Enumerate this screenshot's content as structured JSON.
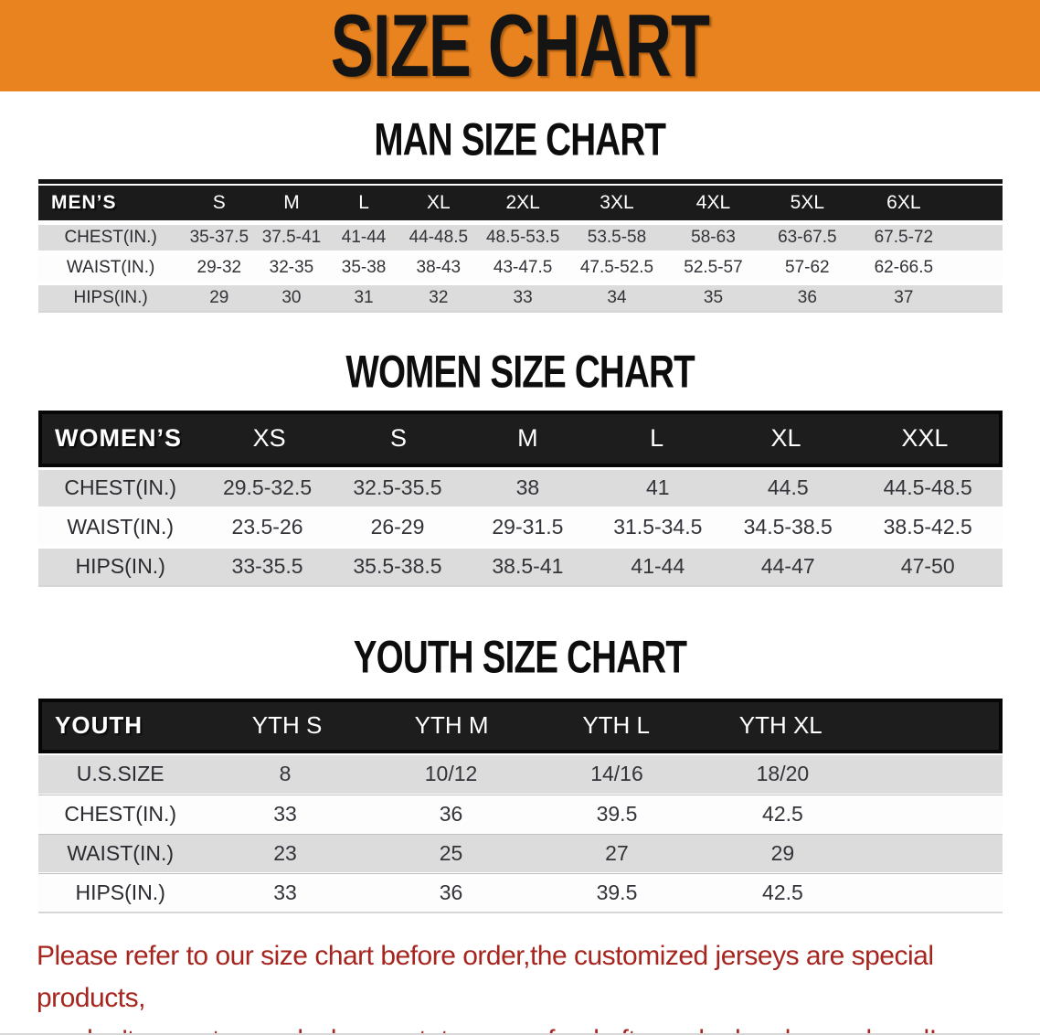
{
  "theme": {
    "banner_bg": "#E8831F",
    "banner_text": "#141414",
    "band_bg": "#1b1b1b",
    "band_text": "#ffffff",
    "stripe_gray": "#dcdcdc",
    "stripe_white": "#fdfdfd",
    "data_text": "#333339",
    "footer_red": "#a6251e"
  },
  "banner": {
    "title": "SIZE CHART"
  },
  "sections": {
    "men": {
      "title": "MAN SIZE CHART",
      "table": {
        "header_label": "MEN’S",
        "columns": [
          "S",
          "M",
          "L",
          "XL",
          "2XL",
          "3XL",
          "4XL",
          "5XL",
          "6XL"
        ],
        "rows": [
          {
            "label": "CHEST(IN.)",
            "values": [
              "35-37.5",
              "37.5-41",
              "41-44",
              "44-48.5",
              "48.5-53.5",
              "53.5-58",
              "58-63",
              "63-67.5",
              "67.5-72"
            ]
          },
          {
            "label": "WAIST(IN.)",
            "values": [
              "29-32",
              "32-35",
              "35-38",
              "38-43",
              "43-47.5",
              "47.5-52.5",
              "52.5-57",
              "57-62",
              "62-66.5"
            ]
          },
          {
            "label": "HIPS(IN.)",
            "values": [
              "29",
              "30",
              "31",
              "32",
              "33",
              "34",
              "35",
              "36",
              "37"
            ]
          }
        ]
      }
    },
    "women": {
      "title": "WOMEN SIZE CHART",
      "table": {
        "header_label": "WOMEN’S",
        "columns": [
          "XS",
          "S",
          "M",
          "L",
          "XL",
          "XXL"
        ],
        "rows": [
          {
            "label": "CHEST(IN.)",
            "values": [
              "29.5-32.5",
              "32.5-35.5",
              "38",
              "41",
              "44.5",
              "44.5-48.5"
            ]
          },
          {
            "label": "WAIST(IN.)",
            "values": [
              "23.5-26",
              "26-29",
              "29-31.5",
              "31.5-34.5",
              "34.5-38.5",
              "38.5-42.5"
            ]
          },
          {
            "label": "HIPS(IN.)",
            "values": [
              "33-35.5",
              "35.5-38.5",
              "38.5-41",
              "41-44",
              "44-47",
              "47-50"
            ]
          }
        ]
      }
    },
    "youth": {
      "title": "YOUTH SIZE CHART",
      "table": {
        "header_label": "YOUTH",
        "columns": [
          "YTH S",
          "YTH M",
          "YTH L",
          "YTH XL"
        ],
        "rows": [
          {
            "label": "U.S.SIZE",
            "values": [
              "8",
              "10/12",
              "14/16",
              "18/20"
            ]
          },
          {
            "label": "CHEST(IN.)",
            "values": [
              "33",
              "36",
              "39.5",
              "42.5"
            ]
          },
          {
            "label": "WAIST(IN.)",
            "values": [
              "23",
              "25",
              "27",
              "29"
            ]
          },
          {
            "label": "HIPS(IN.)",
            "values": [
              "33",
              "36",
              "39.5",
              "42.5"
            ]
          }
        ]
      }
    }
  },
  "footer": {
    "line1": "Please refer to our size chart before order,the customized jerseys are special products,",
    "line2": "we don't accept cancel, change, teturn or refund after order has been placed!"
  }
}
